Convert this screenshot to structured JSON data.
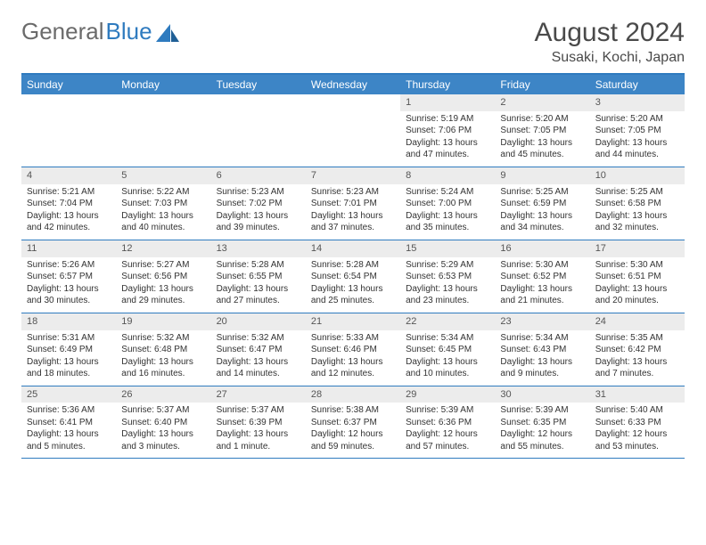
{
  "brand": {
    "part1": "General",
    "part2": "Blue"
  },
  "title": "August 2024",
  "location": "Susaki, Kochi, Japan",
  "colors": {
    "header_bg": "#3d85c6",
    "header_text": "#ffffff",
    "daynum_bg": "#ececec",
    "border": "#2f7bbf",
    "text": "#333333",
    "title_text": "#4a4a4a",
    "logo_gray": "#6b6b6b",
    "logo_blue": "#2f7bbf"
  },
  "day_headers": [
    "Sunday",
    "Monday",
    "Tuesday",
    "Wednesday",
    "Thursday",
    "Friday",
    "Saturday"
  ],
  "weeks": [
    [
      {
        "blank": true
      },
      {
        "blank": true
      },
      {
        "blank": true
      },
      {
        "blank": true
      },
      {
        "n": "1",
        "sr": "Sunrise: 5:19 AM",
        "ss": "Sunset: 7:06 PM",
        "dl": "Daylight: 13 hours and 47 minutes."
      },
      {
        "n": "2",
        "sr": "Sunrise: 5:20 AM",
        "ss": "Sunset: 7:05 PM",
        "dl": "Daylight: 13 hours and 45 minutes."
      },
      {
        "n": "3",
        "sr": "Sunrise: 5:20 AM",
        "ss": "Sunset: 7:05 PM",
        "dl": "Daylight: 13 hours and 44 minutes."
      }
    ],
    [
      {
        "n": "4",
        "sr": "Sunrise: 5:21 AM",
        "ss": "Sunset: 7:04 PM",
        "dl": "Daylight: 13 hours and 42 minutes."
      },
      {
        "n": "5",
        "sr": "Sunrise: 5:22 AM",
        "ss": "Sunset: 7:03 PM",
        "dl": "Daylight: 13 hours and 40 minutes."
      },
      {
        "n": "6",
        "sr": "Sunrise: 5:23 AM",
        "ss": "Sunset: 7:02 PM",
        "dl": "Daylight: 13 hours and 39 minutes."
      },
      {
        "n": "7",
        "sr": "Sunrise: 5:23 AM",
        "ss": "Sunset: 7:01 PM",
        "dl": "Daylight: 13 hours and 37 minutes."
      },
      {
        "n": "8",
        "sr": "Sunrise: 5:24 AM",
        "ss": "Sunset: 7:00 PM",
        "dl": "Daylight: 13 hours and 35 minutes."
      },
      {
        "n": "9",
        "sr": "Sunrise: 5:25 AM",
        "ss": "Sunset: 6:59 PM",
        "dl": "Daylight: 13 hours and 34 minutes."
      },
      {
        "n": "10",
        "sr": "Sunrise: 5:25 AM",
        "ss": "Sunset: 6:58 PM",
        "dl": "Daylight: 13 hours and 32 minutes."
      }
    ],
    [
      {
        "n": "11",
        "sr": "Sunrise: 5:26 AM",
        "ss": "Sunset: 6:57 PM",
        "dl": "Daylight: 13 hours and 30 minutes."
      },
      {
        "n": "12",
        "sr": "Sunrise: 5:27 AM",
        "ss": "Sunset: 6:56 PM",
        "dl": "Daylight: 13 hours and 29 minutes."
      },
      {
        "n": "13",
        "sr": "Sunrise: 5:28 AM",
        "ss": "Sunset: 6:55 PM",
        "dl": "Daylight: 13 hours and 27 minutes."
      },
      {
        "n": "14",
        "sr": "Sunrise: 5:28 AM",
        "ss": "Sunset: 6:54 PM",
        "dl": "Daylight: 13 hours and 25 minutes."
      },
      {
        "n": "15",
        "sr": "Sunrise: 5:29 AM",
        "ss": "Sunset: 6:53 PM",
        "dl": "Daylight: 13 hours and 23 minutes."
      },
      {
        "n": "16",
        "sr": "Sunrise: 5:30 AM",
        "ss": "Sunset: 6:52 PM",
        "dl": "Daylight: 13 hours and 21 minutes."
      },
      {
        "n": "17",
        "sr": "Sunrise: 5:30 AM",
        "ss": "Sunset: 6:51 PM",
        "dl": "Daylight: 13 hours and 20 minutes."
      }
    ],
    [
      {
        "n": "18",
        "sr": "Sunrise: 5:31 AM",
        "ss": "Sunset: 6:49 PM",
        "dl": "Daylight: 13 hours and 18 minutes."
      },
      {
        "n": "19",
        "sr": "Sunrise: 5:32 AM",
        "ss": "Sunset: 6:48 PM",
        "dl": "Daylight: 13 hours and 16 minutes."
      },
      {
        "n": "20",
        "sr": "Sunrise: 5:32 AM",
        "ss": "Sunset: 6:47 PM",
        "dl": "Daylight: 13 hours and 14 minutes."
      },
      {
        "n": "21",
        "sr": "Sunrise: 5:33 AM",
        "ss": "Sunset: 6:46 PM",
        "dl": "Daylight: 13 hours and 12 minutes."
      },
      {
        "n": "22",
        "sr": "Sunrise: 5:34 AM",
        "ss": "Sunset: 6:45 PM",
        "dl": "Daylight: 13 hours and 10 minutes."
      },
      {
        "n": "23",
        "sr": "Sunrise: 5:34 AM",
        "ss": "Sunset: 6:43 PM",
        "dl": "Daylight: 13 hours and 9 minutes."
      },
      {
        "n": "24",
        "sr": "Sunrise: 5:35 AM",
        "ss": "Sunset: 6:42 PM",
        "dl": "Daylight: 13 hours and 7 minutes."
      }
    ],
    [
      {
        "n": "25",
        "sr": "Sunrise: 5:36 AM",
        "ss": "Sunset: 6:41 PM",
        "dl": "Daylight: 13 hours and 5 minutes."
      },
      {
        "n": "26",
        "sr": "Sunrise: 5:37 AM",
        "ss": "Sunset: 6:40 PM",
        "dl": "Daylight: 13 hours and 3 minutes."
      },
      {
        "n": "27",
        "sr": "Sunrise: 5:37 AM",
        "ss": "Sunset: 6:39 PM",
        "dl": "Daylight: 13 hours and 1 minute."
      },
      {
        "n": "28",
        "sr": "Sunrise: 5:38 AM",
        "ss": "Sunset: 6:37 PM",
        "dl": "Daylight: 12 hours and 59 minutes."
      },
      {
        "n": "29",
        "sr": "Sunrise: 5:39 AM",
        "ss": "Sunset: 6:36 PM",
        "dl": "Daylight: 12 hours and 57 minutes."
      },
      {
        "n": "30",
        "sr": "Sunrise: 5:39 AM",
        "ss": "Sunset: 6:35 PM",
        "dl": "Daylight: 12 hours and 55 minutes."
      },
      {
        "n": "31",
        "sr": "Sunrise: 5:40 AM",
        "ss": "Sunset: 6:33 PM",
        "dl": "Daylight: 12 hours and 53 minutes."
      }
    ]
  ]
}
